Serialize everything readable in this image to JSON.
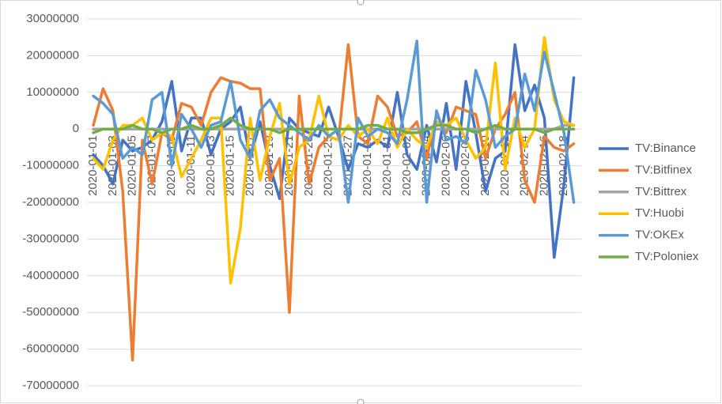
{
  "chart_data": {
    "type": "line",
    "categories": [
      "2020-01-01",
      null,
      "2020-01-03",
      null,
      "2020-01-05",
      null,
      "2020-01-07",
      null,
      "2020-01-09",
      null,
      "2020-01-11",
      null,
      "2020-01-13",
      null,
      "2020-01-15",
      null,
      "2020-01-17",
      null,
      "2020-01-19",
      null,
      "2020-01-21",
      null,
      "2020-01-23",
      null,
      "2020-01-25",
      null,
      "2020-01-27",
      null,
      "2020-01-29",
      null,
      "2020-01-31",
      null,
      "2020-02-02",
      null,
      "2020-02-04",
      null,
      "2020-02-06",
      null,
      "2020-02-08",
      null,
      "2020-02-10",
      null,
      "2020-02-12",
      null,
      "2020-02-14",
      null,
      "2020-02-16",
      null,
      "2020-02-18",
      null
    ],
    "ylim": [
      -70000000,
      30000000
    ],
    "yticks": [
      -70000000,
      -60000000,
      -50000000,
      -40000000,
      -30000000,
      -20000000,
      -10000000,
      0,
      10000000,
      20000000,
      30000000
    ],
    "grid": true,
    "legend": "right",
    "series": [
      {
        "name": "TV:Binance",
        "color": "#4472c4",
        "values": [
          -7000000,
          -10000000,
          -15000000,
          -3000000,
          -6000000,
          -5000000,
          -3000000,
          2000000,
          13000000,
          -6000000,
          3000000,
          3000000,
          -7000000,
          0,
          2000000,
          6000000,
          -8000000,
          2000000,
          -10000000,
          -19000000,
          3000000,
          0,
          -1000000,
          -2000000,
          6000000,
          -2000000,
          -11000000,
          -4000000,
          -5000000,
          -3000000,
          -5000000,
          10000000,
          -7000000,
          -11000000,
          1000000,
          -9000000,
          7000000,
          -11000000,
          13000000,
          -1000000,
          -17000000,
          -8000000,
          -6000000,
          23000000,
          5000000,
          12000000,
          3000000,
          -35000000,
          -15000000,
          14000000
        ]
      },
      {
        "name": "TV:Bitfinex",
        "color": "#ed7d31",
        "values": [
          1000000,
          11000000,
          5000000,
          -17000000,
          -63000000,
          -3000000,
          -15000000,
          -1000000,
          -3000000,
          7000000,
          6000000,
          1000000,
          10000000,
          14000000,
          13000000,
          12500000,
          11000000,
          11000000,
          -14000000,
          -8000000,
          -50000000,
          9000000,
          -15000000,
          -5000000,
          -2000000,
          -3000000,
          23000000,
          -2000000,
          -4000000,
          9000000,
          6000000,
          -2000000,
          -1000000,
          2000000,
          -8000000,
          4000000,
          -1000000,
          6000000,
          5000000,
          4000000,
          -8000000,
          0,
          4000000,
          10000000,
          -14000000,
          -20000000,
          -2000000,
          -5000000,
          -6000000,
          -4000000
        ]
      },
      {
        "name": "TV:Bittrex",
        "color": "#a5a5a5",
        "values": [
          0,
          0,
          0,
          0,
          0,
          0,
          0,
          0,
          0,
          0,
          0,
          0,
          0,
          0,
          0,
          0,
          0,
          0,
          0,
          0,
          0,
          0,
          0,
          0,
          0,
          0,
          0,
          0,
          0,
          0,
          0,
          0,
          0,
          0,
          0,
          0,
          0,
          0,
          0,
          0,
          0,
          0,
          0,
          0,
          0,
          0,
          0,
          0,
          1000000,
          1000000
        ]
      },
      {
        "name": "TV:Huobi",
        "color": "#ffc000",
        "values": [
          -8000000,
          -11000000,
          -3000000,
          1000000,
          1000000,
          3000000,
          -3000000,
          -1000000,
          -2000000,
          -13000000,
          -8000000,
          -3000000,
          3000000,
          3000000,
          -42000000,
          -27000000,
          3000000,
          -14000000,
          -2000000,
          7000000,
          -15000000,
          -5000000,
          -3000000,
          9000000,
          -2000000,
          -3000000,
          1000000,
          -2000000,
          0,
          -4000000,
          3000000,
          -5000000,
          0,
          -3000000,
          -5000000,
          2000000,
          1000000,
          3000000,
          -3000000,
          -8000000,
          -5000000,
          18000000,
          -11000000,
          3000000,
          -5000000,
          0,
          25000000,
          8000000,
          2000000,
          1000000
        ]
      },
      {
        "name": "TV:OKEx",
        "color": "#5b9bd5",
        "values": [
          9000000,
          7000000,
          4000000,
          -8000000,
          -5000000,
          -7000000,
          8000000,
          10000000,
          -10000000,
          4000000,
          0,
          -5000000,
          1000000,
          2000000,
          13000000,
          -3000000,
          -8000000,
          5000000,
          8000000,
          3000000,
          1000000,
          -1000000,
          -3000000,
          1000000,
          -2000000,
          0,
          -20000000,
          3000000,
          -2000000,
          0,
          -1000000,
          -4000000,
          8000000,
          24000000,
          -20000000,
          5000000,
          -3000000,
          -2000000,
          -4000000,
          16000000,
          8000000,
          -5000000,
          -2000000,
          0,
          15000000,
          5000000,
          21000000,
          10000000,
          -1000000,
          -20000000
        ]
      },
      {
        "name": "TV:Poloniex",
        "color": "#70ad47",
        "values": [
          -1000000,
          0,
          0,
          0,
          1000000,
          0,
          0,
          -1000000,
          0,
          0,
          1000000,
          0,
          0,
          1000000,
          3000000,
          1000000,
          0,
          0,
          0,
          -1000000,
          0,
          0,
          0,
          0,
          0,
          0,
          0,
          0,
          1000000,
          1000000,
          0,
          0,
          -1000000,
          -1000000,
          0,
          1000000,
          1000000,
          0,
          0,
          -1000000,
          0,
          1000000,
          0,
          0,
          0,
          0,
          -1000000,
          0,
          0,
          0
        ]
      }
    ]
  }
}
